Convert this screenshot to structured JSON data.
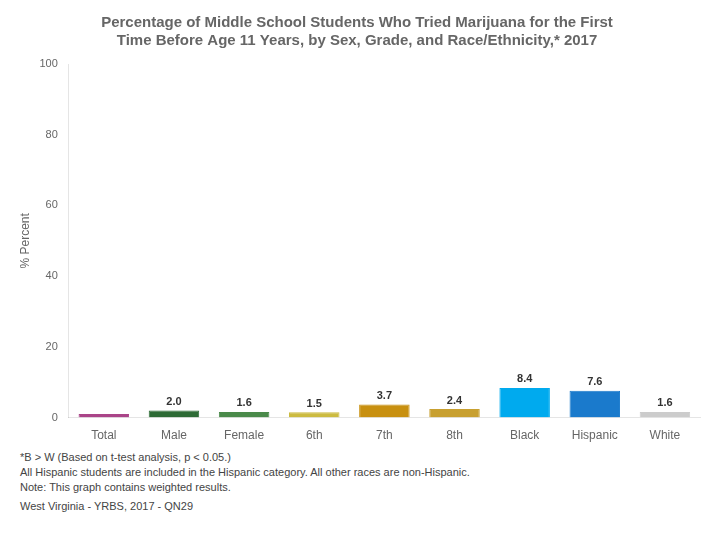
{
  "chart_data": {
    "type": "bar",
    "title": "Percentage of Middle School Students Who Tried Marijuana for the First\nTime Before Age 11 Years, by Sex, Grade, and Race/Ethnicity,* 2017",
    "ylabel": "% Percent",
    "categories": [
      "Total",
      "Male",
      "Female",
      "6th",
      "7th",
      "8th",
      "Black",
      "Hispanic",
      "White"
    ],
    "values": [
      1.0,
      2.0,
      1.6,
      1.5,
      3.7,
      2.4,
      8.4,
      7.6,
      1.6
    ],
    "value_labels": [
      null,
      "2.0",
      "1.6",
      "1.5",
      "3.7",
      "2.4",
      "8.4",
      "7.6",
      "1.6"
    ],
    "colors": [
      "#aa4488",
      "#2d6b35",
      "#4a8a4a",
      "#ccbb40",
      "#c89010",
      "#c8a030",
      "#00aaee",
      "#1a7acc",
      "#cccccc"
    ],
    "ylim": [
      0,
      100
    ],
    "yticks": [
      0,
      20,
      40,
      60,
      80,
      100
    ],
    "grid": false,
    "data_labels": true,
    "annotations": [
      "*B > W (Based on t-test analysis, p < 0.05.)\nAll Hispanic students are included in the Hispanic category.   All other races are non-Hispanic.\nNote: This graph contains weighted results.",
      "West Virginia - YRBS, 2017 - QN29"
    ]
  }
}
